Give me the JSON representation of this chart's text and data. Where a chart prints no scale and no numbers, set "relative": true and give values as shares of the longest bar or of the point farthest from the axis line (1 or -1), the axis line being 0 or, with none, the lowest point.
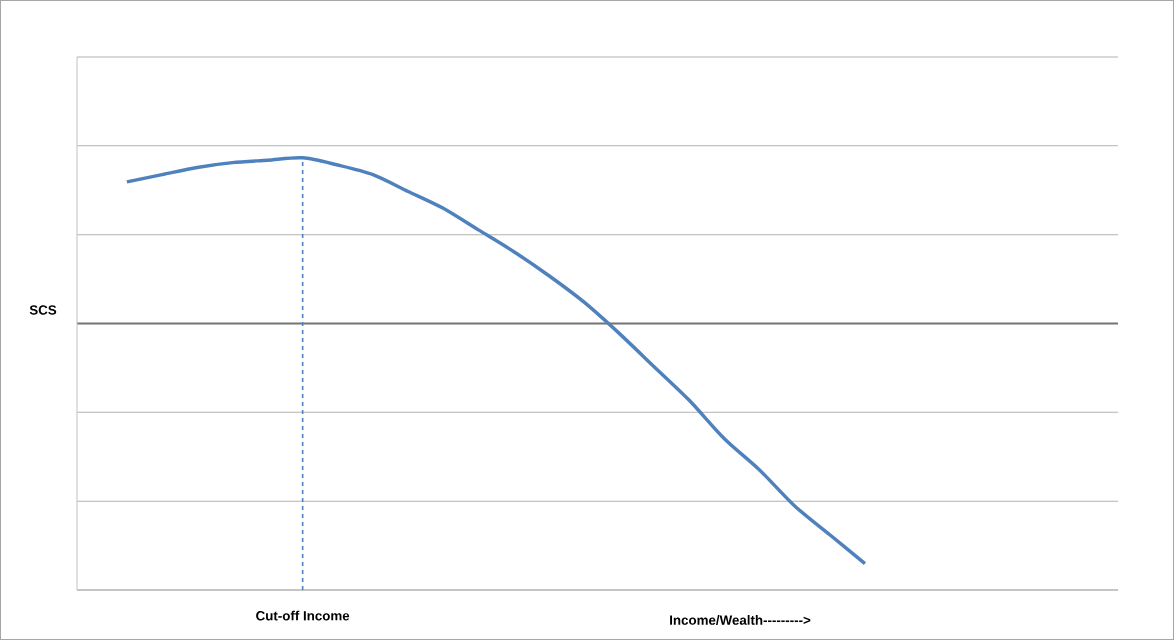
{
  "chart_data": {
    "type": "line",
    "relative": true,
    "ylabel": "SCS",
    "xlabel": "Income/Wealth--------->",
    "categories": [
      null,
      null,
      null,
      null,
      null,
      null,
      null,
      null,
      null,
      null,
      null,
      null,
      null,
      null,
      null,
      null,
      null,
      null,
      null,
      null,
      null,
      null
    ],
    "values": [
      0.59,
      0.62,
      0.65,
      0.67,
      0.68,
      0.69,
      0.66,
      0.62,
      0.55,
      0.48,
      0.39,
      0.3,
      0.2,
      0.09,
      -0.04,
      -0.18,
      -0.32,
      -0.48,
      -0.61,
      -0.76,
      -0.88,
      -1
    ],
    "color": "#4f81bd",
    "grid": "y",
    "marker": "none",
    "line_style": "solid",
    "annotations": [
      "Cut-off Income"
    ]
  }
}
